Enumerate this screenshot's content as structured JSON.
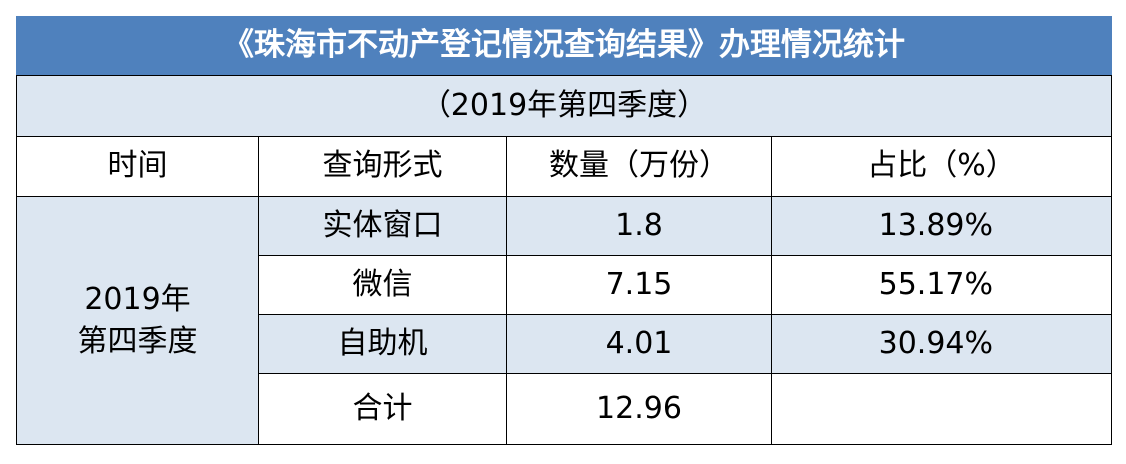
{
  "title": "《珠海市不动产登记情况查询结果》办理情况统计",
  "subtitle": "（2019年第四季度）",
  "headers": [
    "时间",
    "查询形式",
    "数量（万份）",
    "占比（%）"
  ],
  "period_line1": "2019年",
  "period_line2": "第四季度",
  "rows": [
    {
      "method": "实体窗口",
      "count": "1.8",
      "share": "13.89%"
    },
    {
      "method": "微信",
      "count": "7.15",
      "share": "55.17%"
    },
    {
      "method": "自助机",
      "count": "4.01",
      "share": "30.94%"
    }
  ],
  "total": {
    "label": "合计",
    "count": "12.96",
    "share": ""
  },
  "colors": {
    "title_bg": "#4f81bd",
    "shade_bg": "#dce6f1",
    "title_text": "#ffffff"
  }
}
